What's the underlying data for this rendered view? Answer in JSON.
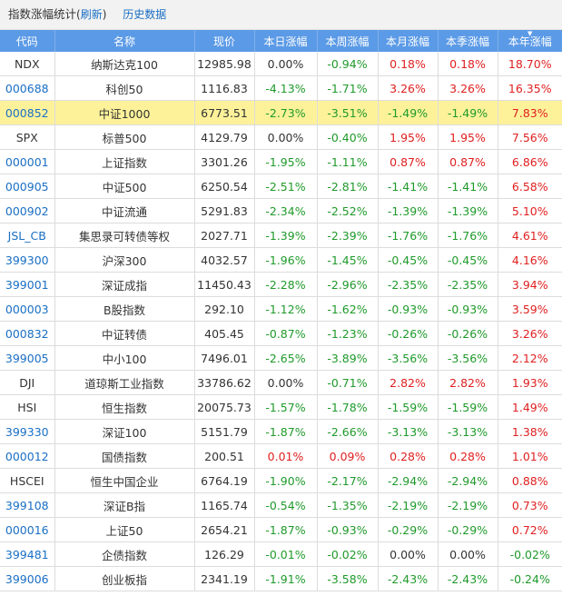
{
  "header": {
    "title": "指数涨幅统计",
    "refresh_label": "刷新",
    "paren_open": "(",
    "paren_close": ")",
    "history_label": "历史数据"
  },
  "table": {
    "columns": [
      "代码",
      "名称",
      "现价",
      "本日涨幅",
      "本周涨幅",
      "本月涨幅",
      "本季涨幅",
      "本年涨幅"
    ],
    "sort_column_index": 7,
    "sort_direction": "desc",
    "highlight_row_index": 2,
    "rows": [
      {
        "code": "NDX",
        "code_link": false,
        "name": "纳斯达克100",
        "price": "12985.98",
        "day": "0.00%",
        "week": "-0.94%",
        "month": "0.18%",
        "quarter": "0.18%",
        "year": "18.70%"
      },
      {
        "code": "000688",
        "code_link": true,
        "name": "科创50",
        "price": "1116.83",
        "day": "-4.13%",
        "week": "-1.71%",
        "month": "3.26%",
        "quarter": "3.26%",
        "year": "16.35%"
      },
      {
        "code": "000852",
        "code_link": true,
        "name": "中证1000",
        "price": "6773.51",
        "day": "-2.73%",
        "week": "-3.51%",
        "month": "-1.49%",
        "quarter": "-1.49%",
        "year": "7.83%"
      },
      {
        "code": "SPX",
        "code_link": false,
        "name": "标普500",
        "price": "4129.79",
        "day": "0.00%",
        "week": "-0.40%",
        "month": "1.95%",
        "quarter": "1.95%",
        "year": "7.56%"
      },
      {
        "code": "000001",
        "code_link": true,
        "name": "上证指数",
        "price": "3301.26",
        "day": "-1.95%",
        "week": "-1.11%",
        "month": "0.87%",
        "quarter": "0.87%",
        "year": "6.86%"
      },
      {
        "code": "000905",
        "code_link": true,
        "name": "中证500",
        "price": "6250.54",
        "day": "-2.51%",
        "week": "-2.81%",
        "month": "-1.41%",
        "quarter": "-1.41%",
        "year": "6.58%"
      },
      {
        "code": "000902",
        "code_link": true,
        "name": "中证流通",
        "price": "5291.83",
        "day": "-2.34%",
        "week": "-2.52%",
        "month": "-1.39%",
        "quarter": "-1.39%",
        "year": "5.10%"
      },
      {
        "code": "JSL_CB",
        "code_link": true,
        "name": "集思录可转债等权",
        "price": "2027.71",
        "day": "-1.39%",
        "week": "-2.39%",
        "month": "-1.76%",
        "quarter": "-1.76%",
        "year": "4.61%"
      },
      {
        "code": "399300",
        "code_link": true,
        "name": "沪深300",
        "price": "4032.57",
        "day": "-1.96%",
        "week": "-1.45%",
        "month": "-0.45%",
        "quarter": "-0.45%",
        "year": "4.16%"
      },
      {
        "code": "399001",
        "code_link": true,
        "name": "深证成指",
        "price": "11450.43",
        "day": "-2.28%",
        "week": "-2.96%",
        "month": "-2.35%",
        "quarter": "-2.35%",
        "year": "3.94%"
      },
      {
        "code": "000003",
        "code_link": true,
        "name": "B股指数",
        "price": "292.10",
        "day": "-1.12%",
        "week": "-1.62%",
        "month": "-0.93%",
        "quarter": "-0.93%",
        "year": "3.59%"
      },
      {
        "code": "000832",
        "code_link": true,
        "name": "中证转债",
        "price": "405.45",
        "day": "-0.87%",
        "week": "-1.23%",
        "month": "-0.26%",
        "quarter": "-0.26%",
        "year": "3.26%"
      },
      {
        "code": "399005",
        "code_link": true,
        "name": "中小100",
        "price": "7496.01",
        "day": "-2.65%",
        "week": "-3.89%",
        "month": "-3.56%",
        "quarter": "-3.56%",
        "year": "2.12%"
      },
      {
        "code": "DJI",
        "code_link": false,
        "name": "道琼斯工业指数",
        "price": "33786.62",
        "day": "0.00%",
        "week": "-0.71%",
        "month": "2.82%",
        "quarter": "2.82%",
        "year": "1.93%"
      },
      {
        "code": "HSI",
        "code_link": false,
        "name": "恒生指数",
        "price": "20075.73",
        "day": "-1.57%",
        "week": "-1.78%",
        "month": "-1.59%",
        "quarter": "-1.59%",
        "year": "1.49%"
      },
      {
        "code": "399330",
        "code_link": true,
        "name": "深证100",
        "price": "5151.79",
        "day": "-1.87%",
        "week": "-2.66%",
        "month": "-3.13%",
        "quarter": "-3.13%",
        "year": "1.38%"
      },
      {
        "code": "000012",
        "code_link": true,
        "name": "国债指数",
        "price": "200.51",
        "day": "0.01%",
        "week": "0.09%",
        "month": "0.28%",
        "quarter": "0.28%",
        "year": "1.01%"
      },
      {
        "code": "HSCEI",
        "code_link": false,
        "name": "恒生中国企业",
        "price": "6764.19",
        "day": "-1.90%",
        "week": "-2.17%",
        "month": "-2.94%",
        "quarter": "-2.94%",
        "year": "0.88%"
      },
      {
        "code": "399108",
        "code_link": true,
        "name": "深证B指",
        "price": "1165.74",
        "day": "-0.54%",
        "week": "-1.35%",
        "month": "-2.19%",
        "quarter": "-2.19%",
        "year": "0.73%"
      },
      {
        "code": "000016",
        "code_link": true,
        "name": "上证50",
        "price": "2654.21",
        "day": "-1.87%",
        "week": "-0.93%",
        "month": "-0.29%",
        "quarter": "-0.29%",
        "year": "0.72%"
      },
      {
        "code": "399481",
        "code_link": true,
        "name": "企债指数",
        "price": "126.29",
        "day": "-0.01%",
        "week": "-0.02%",
        "month": "0.00%",
        "quarter": "0.00%",
        "year": "-0.02%"
      },
      {
        "code": "399006",
        "code_link": true,
        "name": "创业板指",
        "price": "2341.19",
        "day": "-1.91%",
        "week": "-3.58%",
        "month": "-2.43%",
        "quarter": "-2.43%",
        "year": "-0.24%"
      }
    ]
  },
  "colors": {
    "header_bg": "#5b9ae6",
    "link": "#1a6fc4",
    "up": "#e02020",
    "down": "#1f9a2a",
    "highlight_row": "#fdf29a"
  }
}
